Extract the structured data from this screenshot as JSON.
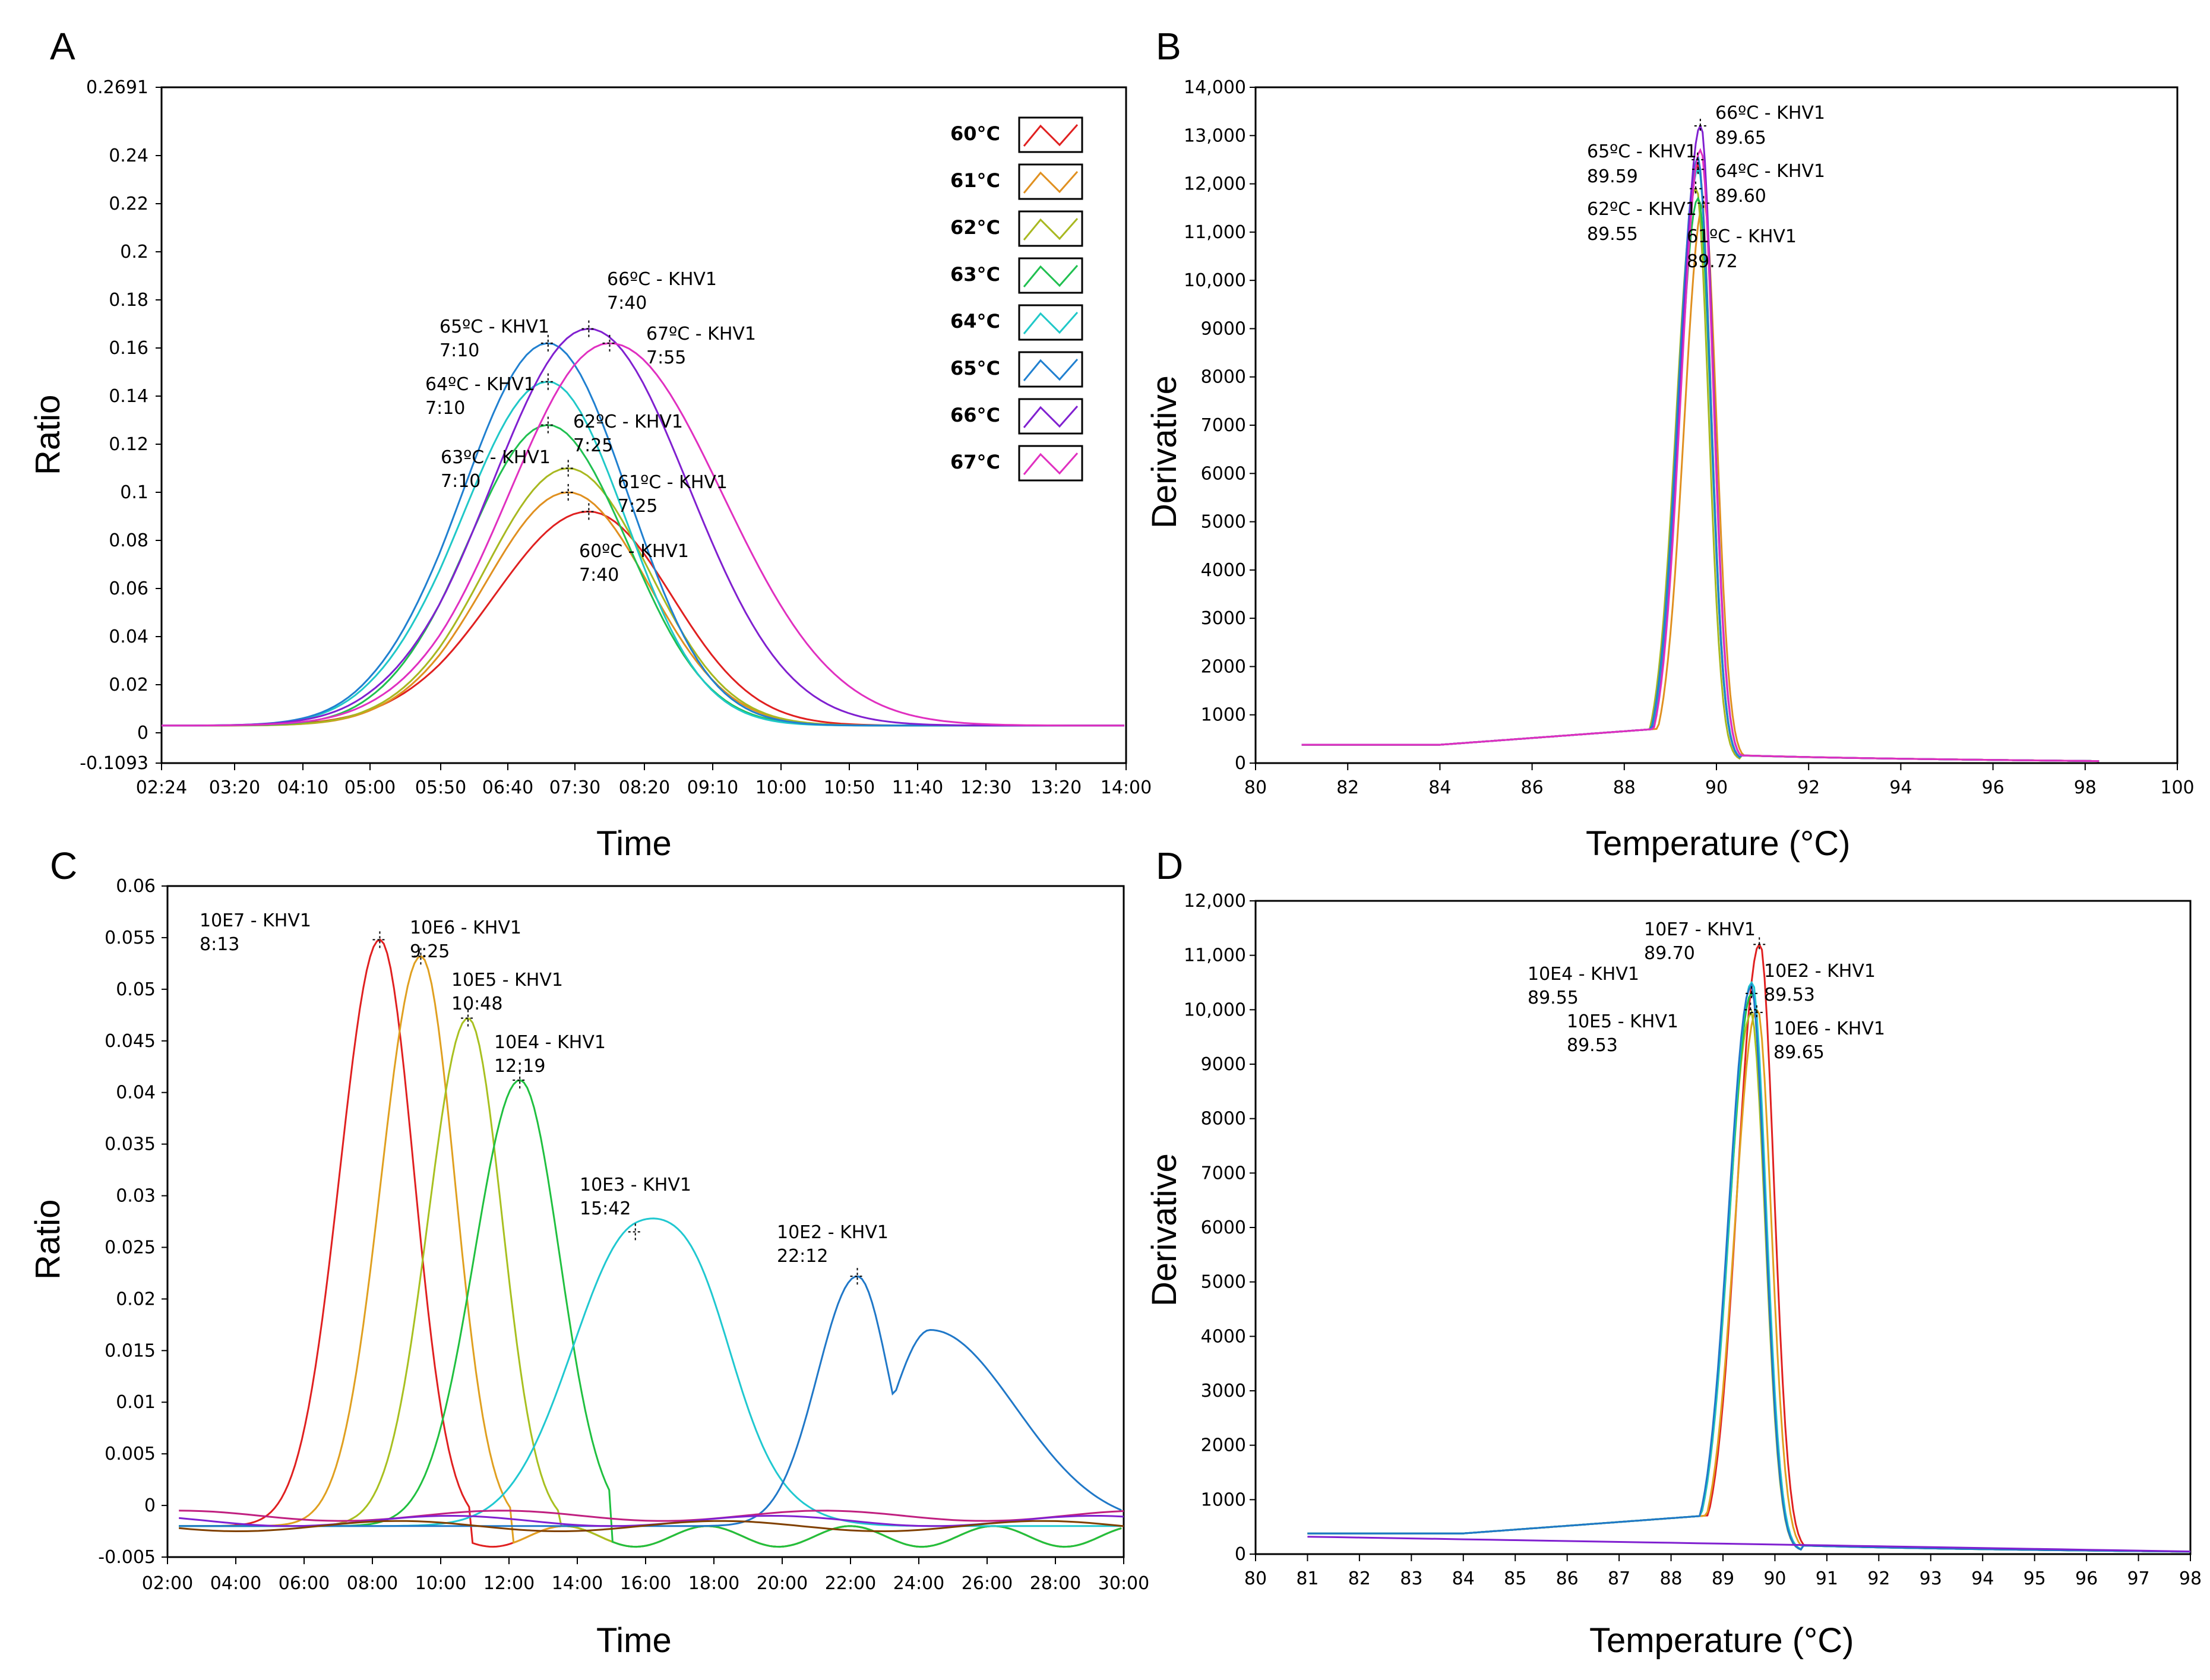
{
  "panels": {
    "A": {
      "letter": "A",
      "xlabel": "Time",
      "ylabel": "Ratio",
      "xticks": [
        "02:24",
        "03:20",
        "04:10",
        "05:00",
        "05:50",
        "06:40",
        "07:30",
        "08:20",
        "09:10",
        "10:00",
        "10:50",
        "11:40",
        "12:30",
        "13:20",
        "14:00"
      ],
      "yticks": [
        "0.2691",
        "0.24",
        "0.22",
        "0.2",
        "0.18",
        "0.16",
        "0.14",
        "0.12",
        "0.1",
        "0.08",
        "0.06",
        "0.04",
        "0.02",
        "0",
        "-0.1093"
      ],
      "legend": [
        "60°C",
        "61°C",
        "62°C",
        "63°C",
        "64°C",
        "65°C",
        "66°C",
        "67°C"
      ],
      "annotations": [
        [
          "66ºC - KHV1",
          "7:40"
        ],
        [
          "65ºC - KHV1",
          "7:10"
        ],
        [
          "67ºC - KHV1",
          "7:55"
        ],
        [
          "64ºC - KHV1",
          "7:10"
        ],
        [
          "62ºC - KHV1",
          "7:25"
        ],
        [
          "63ºC - KHV1",
          "7:10"
        ],
        [
          "61ºC - KHV1",
          "7:25"
        ],
        [
          "60ºC - KHV1",
          "7:40"
        ]
      ]
    },
    "B": {
      "letter": "B",
      "xlabel": "Temperature (°C)",
      "ylabel": "Derivative",
      "xticks": [
        "80",
        "82",
        "84",
        "86",
        "88",
        "90",
        "92",
        "94",
        "96",
        "98",
        "100"
      ],
      "yticks": [
        "14,000",
        "13,000",
        "12,000",
        "11,000",
        "10,000",
        "9000",
        "8000",
        "7000",
        "6000",
        "5000",
        "4000",
        "3000",
        "2000",
        "1000",
        "0"
      ],
      "annotations": [
        [
          "66ºC - KHV1",
          "89.65"
        ],
        [
          "65ºC - KHV1",
          "89.59"
        ],
        [
          "64ºC - KHV1",
          "89.60"
        ],
        [
          "62ºC - KHV1",
          "89.55"
        ],
        [
          "61ºC - KHV1",
          "89.72"
        ]
      ]
    },
    "C": {
      "letter": "C",
      "xlabel": "Time",
      "ylabel": "Ratio",
      "xticks": [
        "02:00",
        "04:00",
        "06:00",
        "08:00",
        "10:00",
        "12:00",
        "14:00",
        "16:00",
        "18:00",
        "20:00",
        "22:00",
        "24:00",
        "26:00",
        "28:00",
        "30:00"
      ],
      "yticks": [
        "0.06",
        "0.055",
        "0.05",
        "0.045",
        "0.04",
        "0.035",
        "0.03",
        "0.025",
        "0.02",
        "0.015",
        "0.01",
        "0.005",
        "0",
        "-0.005"
      ],
      "annotations": [
        [
          "10E7 - KHV1",
          "8:13"
        ],
        [
          "10E6 - KHV1",
          "9:25"
        ],
        [
          "10E5 - KHV1",
          "10:48"
        ],
        [
          "10E4 - KHV1",
          "12:19"
        ],
        [
          "10E3 - KHV1",
          "15:42"
        ],
        [
          "10E2 - KHV1",
          "22:12"
        ]
      ]
    },
    "D": {
      "letter": "D",
      "xlabel": "Temperature (°C)",
      "ylabel": "Derivative",
      "xticks": [
        "80",
        "81",
        "82",
        "83",
        "84",
        "85",
        "86",
        "87",
        "88",
        "89",
        "90",
        "91",
        "92",
        "93",
        "94",
        "95",
        "96",
        "97",
        "98"
      ],
      "yticks": [
        "12,000",
        "11,000",
        "10,000",
        "9000",
        "8000",
        "7000",
        "6000",
        "5000",
        "4000",
        "3000",
        "2000",
        "1000",
        "0"
      ],
      "annotations": [
        [
          "10E7 - KHV1",
          "89.70"
        ],
        [
          "10E4 - KHV1",
          "89.55"
        ],
        [
          "10E2 - KHV1",
          "89.53"
        ],
        [
          "10E5 - KHV1",
          "89.53"
        ],
        [
          "10E6 - KHV1",
          "89.65"
        ]
      ]
    }
  },
  "chart_data": [
    {
      "panel": "A",
      "type": "line",
      "xlabel": "Time",
      "ylabel": "Ratio",
      "xlim": [
        "02:24",
        "14:00"
      ],
      "ylim": [
        -0.1093,
        0.2691
      ],
      "x_unit": "mm:ss",
      "series": [
        {
          "name": "60°C",
          "color": "#e02020",
          "peak_time": "7:40",
          "peak_value": 0.092
        },
        {
          "name": "61°C",
          "color": "#e09020",
          "peak_time": "7:25",
          "peak_value": 0.1
        },
        {
          "name": "62°C",
          "color": "#a8b820",
          "peak_time": "7:25",
          "peak_value": 0.11
        },
        {
          "name": "63°C",
          "color": "#20c050",
          "peak_time": "7:10",
          "peak_value": 0.128
        },
        {
          "name": "64°C",
          "color": "#20c8c8",
          "peak_time": "7:10",
          "peak_value": 0.146
        },
        {
          "name": "65°C",
          "color": "#2080d0",
          "peak_time": "7:10",
          "peak_value": 0.162
        },
        {
          "name": "66°C",
          "color": "#8020d0",
          "peak_time": "7:40",
          "peak_value": 0.168
        },
        {
          "name": "67°C",
          "color": "#e030c0",
          "peak_time": "7:55",
          "peak_value": 0.162
        }
      ]
    },
    {
      "panel": "B",
      "type": "line",
      "xlabel": "Temperature (°C)",
      "ylabel": "Derivative",
      "xlim": [
        80,
        100
      ],
      "ylim": [
        0,
        14000
      ],
      "series": [
        {
          "name": "60°C",
          "color": "#e02020",
          "peak_x": 89.6,
          "peak_y": 12400
        },
        {
          "name": "61°C",
          "color": "#e09020",
          "peak_x": 89.72,
          "peak_y": 11600
        },
        {
          "name": "62°C",
          "color": "#a8b820",
          "peak_x": 89.55,
          "peak_y": 11900
        },
        {
          "name": "63°C",
          "color": "#20c050",
          "peak_x": 89.6,
          "peak_y": 11700
        },
        {
          "name": "64°C",
          "color": "#20c8c8",
          "peak_x": 89.6,
          "peak_y": 12300
        },
        {
          "name": "65°C",
          "color": "#2080d0",
          "peak_x": 89.59,
          "peak_y": 12500
        },
        {
          "name": "66°C",
          "color": "#8020d0",
          "peak_x": 89.65,
          "peak_y": 13200
        },
        {
          "name": "67°C",
          "color": "#e030c0",
          "peak_x": 89.65,
          "peak_y": 12700
        }
      ]
    },
    {
      "panel": "C",
      "type": "line",
      "xlabel": "Time",
      "ylabel": "Ratio",
      "xlim": [
        "02:00",
        "30:00"
      ],
      "ylim": [
        -0.005,
        0.06
      ],
      "x_unit": "mm:ss",
      "series": [
        {
          "name": "10E7",
          "color": "#e02020",
          "peak_time": "8:13",
          "peak_value": 0.0548
        },
        {
          "name": "10E6",
          "color": "#e0a020",
          "peak_time": "9:25",
          "peak_value": 0.0532
        },
        {
          "name": "10E5",
          "color": "#a8c020",
          "peak_time": "10:48",
          "peak_value": 0.0472
        },
        {
          "name": "10E4",
          "color": "#20c040",
          "peak_time": "12:19",
          "peak_value": 0.0412
        },
        {
          "name": "10E3",
          "color": "#20c8d0",
          "peak_time": "15:42",
          "peak_value": 0.0265
        },
        {
          "name": "10E2",
          "color": "#2078c8",
          "peak_time": "22:12",
          "peak_value": 0.0222,
          "second_peak_time": "24:20",
          "second_peak_value": 0.017
        }
      ]
    },
    {
      "panel": "D",
      "type": "line",
      "xlabel": "Temperature (°C)",
      "ylabel": "Derivative",
      "xlim": [
        80,
        98
      ],
      "ylim": [
        0,
        12000
      ],
      "series": [
        {
          "name": "10E7",
          "color": "#e02020",
          "peak_x": 89.7,
          "peak_y": 11200
        },
        {
          "name": "10E6",
          "color": "#e0a020",
          "peak_x": 89.65,
          "peak_y": 10000
        },
        {
          "name": "10E5",
          "color": "#a8c020",
          "peak_x": 89.53,
          "peak_y": 9900
        },
        {
          "name": "10E4",
          "color": "#20c040",
          "peak_x": 89.55,
          "peak_y": 10300
        },
        {
          "name": "10E3",
          "color": "#20c8d0",
          "peak_x": 89.55,
          "peak_y": 10500
        },
        {
          "name": "10E2",
          "color": "#2078c8",
          "peak_x": 89.53,
          "peak_y": 10400
        }
      ]
    }
  ]
}
